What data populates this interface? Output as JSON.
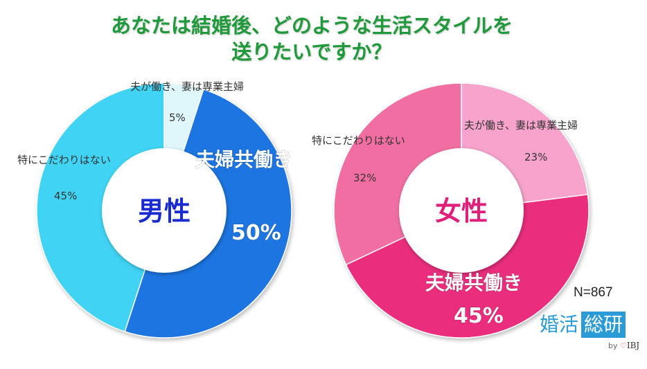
{
  "title": {
    "line1": "あなたは結婚後、どのような生活スタイルを",
    "line2": "送りたいですか？"
  },
  "n_label": "N=867",
  "logo": {
    "part1": "婚活",
    "part2": "総研",
    "by": "by",
    "brand": "IBJ"
  },
  "colors": {
    "title": "#1f9a3a",
    "male_center_text": "#1a2bd0",
    "female_center_text": "#e01f7a"
  },
  "chart_data": [
    {
      "type": "donut",
      "center_label": "男性",
      "segments": [
        {
          "label": "夫が働き、妻は専業主婦",
          "value": 5,
          "value_label": "5%",
          "color": "#dff6fb"
        },
        {
          "label": "夫婦共働き",
          "value": 50,
          "value_label": "50%",
          "color": "#1e74e0"
        },
        {
          "label": "特にこだわりはない",
          "value": 45,
          "value_label": "45%",
          "color": "#3fd3f4"
        }
      ]
    },
    {
      "type": "donut",
      "center_label": "女性",
      "segments": [
        {
          "label": "夫が働き、妻は専業主婦",
          "value": 23,
          "value_label": "23%",
          "color": "#f7a3cc"
        },
        {
          "label": "夫婦共働き",
          "value": 45,
          "value_label": "45%",
          "color": "#ea2f7d"
        },
        {
          "label": "特にこだわりはない",
          "value": 32,
          "value_label": "32%",
          "color": "#f06ea2"
        }
      ]
    }
  ]
}
